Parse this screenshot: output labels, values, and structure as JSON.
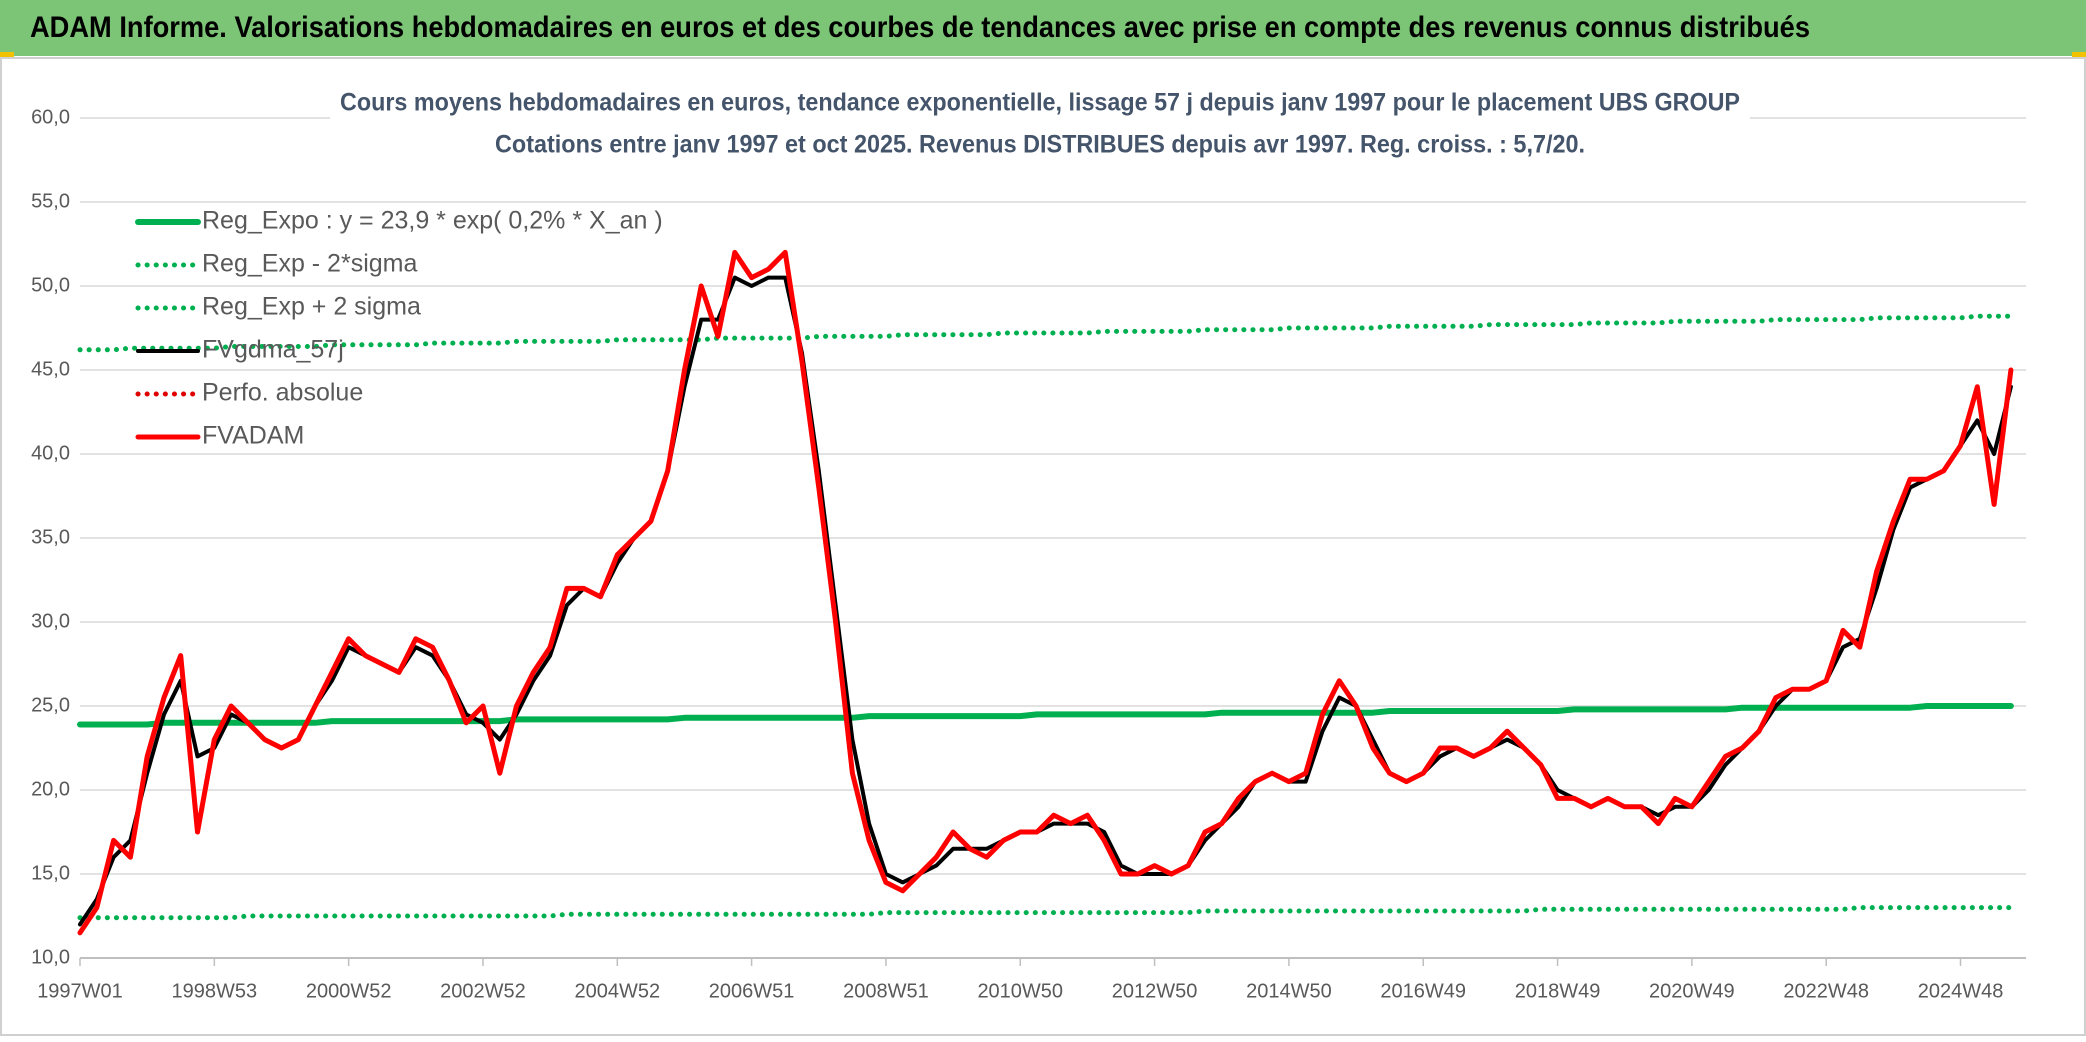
{
  "header": {
    "title": "ADAM Informe. Valorisations hebdomadaires en euros et des courbes de tendances avec prise en compte des revenus connus distribués"
  },
  "chart_data": {
    "type": "line",
    "title": "Cours moyens hebdomadaires en euros, tendance exponentielle, lissage 57 j depuis janv 1997 pour le placement UBS GROUP",
    "subtitle": "Cotations entre janv 1997 et oct 2025. Revenus DISTRIBUES depuis avr 1997. Reg. croiss. : 5,7/20.",
    "categories": [
      "1997W01",
      null,
      null,
      null,
      null,
      null,
      null,
      null,
      "1998W53",
      null,
      null,
      null,
      null,
      null,
      null,
      null,
      "2000W52",
      null,
      null,
      null,
      null,
      null,
      null,
      null,
      "2002W52",
      null,
      null,
      null,
      null,
      null,
      null,
      null,
      "2004W52",
      null,
      null,
      null,
      null,
      null,
      null,
      null,
      "2006W51",
      null,
      null,
      null,
      null,
      null,
      null,
      null,
      "2008W51",
      null,
      null,
      null,
      null,
      null,
      null,
      null,
      "2010W50",
      null,
      null,
      null,
      null,
      null,
      null,
      null,
      "2012W50",
      null,
      null,
      null,
      null,
      null,
      null,
      null,
      "2014W50",
      null,
      null,
      null,
      null,
      null,
      null,
      null,
      "2016W49",
      null,
      null,
      null,
      null,
      null,
      null,
      null,
      "2018W49",
      null,
      null,
      null,
      null,
      null,
      null,
      null,
      "2020W49",
      null,
      null,
      null,
      null,
      null,
      null,
      null,
      "2022W48",
      null,
      null,
      null,
      null,
      null,
      null,
      null,
      "2024W48",
      null,
      null,
      null
    ],
    "ylim": [
      10,
      60
    ],
    "yticks": [
      {
        "value": 10,
        "label": "10,0"
      },
      {
        "value": 15,
        "label": "15,0"
      },
      {
        "value": 20,
        "label": "20,0"
      },
      {
        "value": 25,
        "label": "25,0"
      },
      {
        "value": 30,
        "label": "30,0"
      },
      {
        "value": 35,
        "label": "35,0"
      },
      {
        "value": 40,
        "label": "40,0"
      },
      {
        "value": 45,
        "label": "45,0"
      },
      {
        "value": 50,
        "label": "50,0"
      },
      {
        "value": 55,
        "label": "55,0"
      },
      {
        "value": 60,
        "label": "60,0"
      }
    ],
    "grid": true,
    "legend": "top-left",
    "series": [
      {
        "name": "Reg_Expo : y = 23,9 * exp( 0,2% *  X_an )",
        "color": "#00b050",
        "dash": "solid",
        "values": [
          23.9,
          23.9,
          23.9,
          23.9,
          23.9,
          24.0,
          24.0,
          24.0,
          24.0,
          24.0,
          24.0,
          24.0,
          24.0,
          24.0,
          24.0,
          24.1,
          24.1,
          24.1,
          24.1,
          24.1,
          24.1,
          24.1,
          24.1,
          24.1,
          24.1,
          24.1,
          24.2,
          24.2,
          24.2,
          24.2,
          24.2,
          24.2,
          24.2,
          24.2,
          24.2,
          24.2,
          24.3,
          24.3,
          24.3,
          24.3,
          24.3,
          24.3,
          24.3,
          24.3,
          24.3,
          24.3,
          24.3,
          24.4,
          24.4,
          24.4,
          24.4,
          24.4,
          24.4,
          24.4,
          24.4,
          24.4,
          24.4,
          24.5,
          24.5,
          24.5,
          24.5,
          24.5,
          24.5,
          24.5,
          24.5,
          24.5,
          24.5,
          24.5,
          24.6,
          24.6,
          24.6,
          24.6,
          24.6,
          24.6,
          24.6,
          24.6,
          24.6,
          24.6,
          24.7,
          24.7,
          24.7,
          24.7,
          24.7,
          24.7,
          24.7,
          24.7,
          24.7,
          24.7,
          24.7,
          24.8,
          24.8,
          24.8,
          24.8,
          24.8,
          24.8,
          24.8,
          24.8,
          24.8,
          24.8,
          24.9,
          24.9,
          24.9,
          24.9,
          24.9,
          24.9,
          24.9,
          24.9,
          24.9,
          24.9,
          24.9,
          25.0,
          25.0,
          25.0,
          25.0,
          25.0,
          25.0
        ]
      },
      {
        "name": "Reg_Exp - 2*sigma",
        "color": "#00b050",
        "dash": "dotted",
        "values": [
          12.4,
          12.4,
          12.4,
          12.4,
          12.4,
          12.4,
          12.4,
          12.4,
          12.4,
          12.4,
          12.5,
          12.5,
          12.5,
          12.5,
          12.5,
          12.5,
          12.5,
          12.5,
          12.5,
          12.5,
          12.5,
          12.5,
          12.5,
          12.5,
          12.5,
          12.5,
          12.5,
          12.5,
          12.5,
          12.6,
          12.6,
          12.6,
          12.6,
          12.6,
          12.6,
          12.6,
          12.6,
          12.6,
          12.6,
          12.6,
          12.6,
          12.6,
          12.6,
          12.6,
          12.6,
          12.6,
          12.6,
          12.6,
          12.7,
          12.7,
          12.7,
          12.7,
          12.7,
          12.7,
          12.7,
          12.7,
          12.7,
          12.7,
          12.7,
          12.7,
          12.7,
          12.7,
          12.7,
          12.7,
          12.7,
          12.7,
          12.7,
          12.8,
          12.8,
          12.8,
          12.8,
          12.8,
          12.8,
          12.8,
          12.8,
          12.8,
          12.8,
          12.8,
          12.8,
          12.8,
          12.8,
          12.8,
          12.8,
          12.8,
          12.8,
          12.8,
          12.8,
          12.9,
          12.9,
          12.9,
          12.9,
          12.9,
          12.9,
          12.9,
          12.9,
          12.9,
          12.9,
          12.9,
          12.9,
          12.9,
          12.9,
          12.9,
          12.9,
          12.9,
          12.9,
          12.9,
          13.0,
          13.0,
          13.0,
          13.0,
          13.0,
          13.0,
          13.0,
          13.0,
          13.0,
          13.0
        ]
      },
      {
        "name": "Reg_Exp + 2 sigma",
        "color": "#00b050",
        "dash": "dotted",
        "values": [
          46.2,
          46.2,
          46.2,
          46.3,
          46.3,
          46.3,
          46.3,
          46.3,
          46.3,
          46.4,
          46.4,
          46.4,
          46.4,
          46.4,
          46.4,
          46.5,
          46.5,
          46.5,
          46.5,
          46.5,
          46.5,
          46.6,
          46.6,
          46.6,
          46.6,
          46.6,
          46.7,
          46.7,
          46.7,
          46.7,
          46.7,
          46.7,
          46.8,
          46.8,
          46.8,
          46.8,
          46.8,
          46.8,
          46.9,
          46.9,
          46.9,
          46.9,
          46.9,
          46.9,
          47.0,
          47.0,
          47.0,
          47.0,
          47.0,
          47.1,
          47.1,
          47.1,
          47.1,
          47.1,
          47.1,
          47.2,
          47.2,
          47.2,
          47.2,
          47.2,
          47.2,
          47.3,
          47.3,
          47.3,
          47.3,
          47.3,
          47.3,
          47.4,
          47.4,
          47.4,
          47.4,
          47.4,
          47.5,
          47.5,
          47.5,
          47.5,
          47.5,
          47.5,
          47.6,
          47.6,
          47.6,
          47.6,
          47.6,
          47.6,
          47.7,
          47.7,
          47.7,
          47.7,
          47.7,
          47.7,
          47.8,
          47.8,
          47.8,
          47.8,
          47.8,
          47.9,
          47.9,
          47.9,
          47.9,
          47.9,
          47.9,
          48.0,
          48.0,
          48.0,
          48.0,
          48.0,
          48.0,
          48.1,
          48.1,
          48.1,
          48.1,
          48.1,
          48.1,
          48.2,
          48.2,
          48.2
        ]
      },
      {
        "name": "FVgdma_57j",
        "color": "#000000",
        "dash": "solid",
        "values": [
          12,
          13.5,
          16,
          17,
          21,
          24.5,
          26.5,
          22,
          22.5,
          24.5,
          24,
          23,
          22.5,
          23,
          25,
          26.5,
          28.5,
          28,
          27.5,
          27,
          28.5,
          28,
          26.5,
          24.5,
          24,
          23,
          24.5,
          26.5,
          28,
          31,
          32,
          31.5,
          33.5,
          35,
          36,
          39,
          44,
          48,
          48,
          50.5,
          50,
          50.5,
          50.5,
          46,
          39,
          31,
          23,
          18,
          15,
          14.5,
          15,
          15.5,
          16.5,
          16.5,
          16.5,
          17,
          17.5,
          17.5,
          18,
          18,
          18,
          17.5,
          15.5,
          15,
          15,
          15,
          15.5,
          17,
          18,
          19,
          20.5,
          21,
          20.5,
          20.5,
          23.5,
          25.5,
          25,
          23,
          21,
          20.5,
          21,
          22,
          22.5,
          22,
          22.5,
          23,
          22.5,
          21.5,
          20,
          19.5,
          19,
          19.5,
          19,
          19,
          18.5,
          19,
          19,
          20,
          21.5,
          22.5,
          23.5,
          25,
          26,
          26,
          26.5,
          28.5,
          29,
          32,
          35.5,
          38,
          38.5,
          39,
          40.5,
          42,
          40,
          44
        ]
      },
      {
        "name": "Perfo. absolue",
        "color": "#e00000",
        "dash": "dotted"
      },
      {
        "name": "FVADAM",
        "color": "#ff0000",
        "dash": "solid",
        "values": [
          11.5,
          13,
          17,
          16,
          22,
          25.5,
          28,
          17.5,
          23,
          25,
          24,
          23,
          22.5,
          23,
          25,
          27,
          29,
          28,
          27.5,
          27,
          29,
          28.5,
          26.5,
          24,
          25,
          21,
          25,
          27,
          28.5,
          32,
          32,
          31.5,
          34,
          35,
          36,
          39,
          45,
          50,
          47,
          52,
          50.5,
          51,
          52,
          45.5,
          38,
          30,
          21,
          17,
          14.5,
          14,
          15,
          16,
          17.5,
          16.5,
          16,
          17,
          17.5,
          17.5,
          18.5,
          18,
          18.5,
          17,
          15,
          15,
          15.5,
          15,
          15.5,
          17.5,
          18,
          19.5,
          20.5,
          21,
          20.5,
          21,
          24.5,
          26.5,
          25,
          22.5,
          21,
          20.5,
          21,
          22.5,
          22.5,
          22,
          22.5,
          23.5,
          22.5,
          21.5,
          19.5,
          19.5,
          19,
          19.5,
          19,
          19,
          18,
          19.5,
          19,
          20.5,
          22,
          22.5,
          23.5,
          25.5,
          26,
          26,
          26.5,
          29.5,
          28.5,
          33,
          36,
          38.5,
          38.5,
          39,
          40.5,
          44,
          37,
          45
        ]
      }
    ]
  }
}
